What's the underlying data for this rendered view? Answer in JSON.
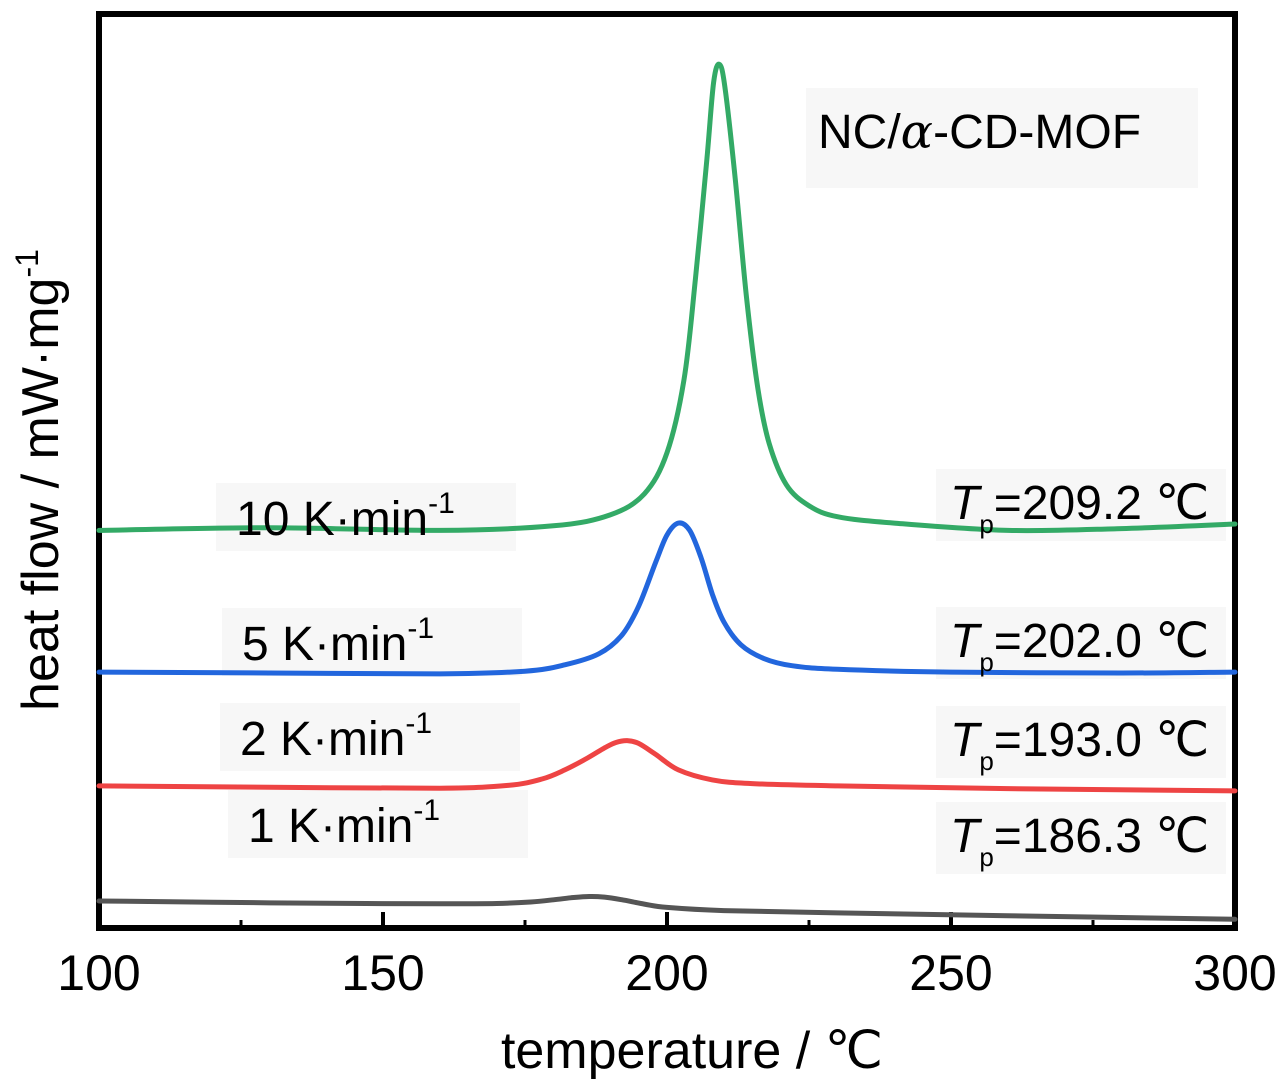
{
  "chart_data": {
    "type": "line",
    "title": "NC/α-CD-MOF",
    "title_parts": {
      "prefix": "NC/",
      "greek": "α",
      "suffix": "-CD-MOF"
    },
    "xlabel": "temperature / ℃",
    "ylabel": "heat flow / mW·mg",
    "ylabel_sup": "-1",
    "xlim": [
      100,
      300
    ],
    "xticks": [
      100,
      150,
      200,
      250,
      300
    ],
    "xticks_minor": [
      125,
      175,
      225,
      275
    ],
    "y_ticks_shown": false,
    "grid": false,
    "series": [
      {
        "rate_value": "1",
        "rate_unit": "K·min",
        "rate_sup": "-1",
        "tp_symbol": "T",
        "tp_sub": "p",
        "tp_text": "=186.3 ℃",
        "peak_temperature": 186.3,
        "color": "#555555",
        "x": [
          100,
          120,
          140,
          160,
          170,
          176,
          180,
          183,
          186.3,
          189,
          192,
          196,
          200,
          210,
          230,
          260,
          300
        ],
        "y": [
          0.295,
          0.282,
          0.27,
          0.265,
          0.268,
          0.285,
          0.308,
          0.33,
          0.345,
          0.338,
          0.31,
          0.262,
          0.225,
          0.19,
          0.165,
          0.135,
          0.095
        ]
      },
      {
        "rate_value": "2",
        "rate_unit": "K·min",
        "rate_sup": "-1",
        "tp_symbol": "T",
        "tp_sub": "p",
        "tp_text": "=193.0 ℃",
        "peak_temperature": 193.0,
        "color": "#ee4444",
        "x": [
          100,
          130,
          160,
          172,
          178,
          182,
          186,
          189,
          191,
          193.0,
          195,
          198,
          202,
          208,
          215,
          230,
          260,
          300
        ],
        "y": [
          1.555,
          1.54,
          1.53,
          1.56,
          1.63,
          1.73,
          1.86,
          1.97,
          2.03,
          2.05,
          2.02,
          1.9,
          1.73,
          1.62,
          1.58,
          1.555,
          1.525,
          1.5
        ]
      },
      {
        "rate_value": "5",
        "rate_unit": "K·min",
        "rate_sup": "-1",
        "tp_symbol": "T",
        "tp_sub": "p",
        "tp_text": "=202.0 ℃",
        "peak_temperature": 202.0,
        "color": "#2266dd",
        "x": [
          100,
          130,
          160,
          175,
          182,
          188,
          192,
          195,
          198,
          200,
          202.0,
          204,
          206,
          208,
          210,
          213,
          217,
          222,
          230,
          250,
          280,
          300
        ],
        "y": [
          2.8,
          2.79,
          2.78,
          2.81,
          2.88,
          3.0,
          3.2,
          3.52,
          4.0,
          4.3,
          4.43,
          4.35,
          4.05,
          3.65,
          3.35,
          3.1,
          2.95,
          2.87,
          2.83,
          2.8,
          2.79,
          2.8
        ]
      },
      {
        "rate_value": "10",
        "rate_unit": "K·min",
        "rate_sup": "-1",
        "tp_symbol": "T",
        "tp_sub": "p",
        "tp_text": "=209.2 ℃",
        "peak_temperature": 209.2,
        "color": "#33aa66",
        "x": [
          100,
          130,
          160,
          180,
          190,
          196,
          200,
          203,
          205,
          207,
          208.2,
          209.2,
          210.2,
          212,
          214,
          216,
          218,
          221,
          225,
          230,
          240,
          260,
          280,
          300
        ],
        "y": [
          4.35,
          4.38,
          4.35,
          4.4,
          4.52,
          4.75,
          5.2,
          6.0,
          7.1,
          8.4,
          9.25,
          9.45,
          9.2,
          8.2,
          6.9,
          5.9,
          5.3,
          4.85,
          4.62,
          4.5,
          4.43,
          4.35,
          4.37,
          4.42
        ]
      }
    ]
  }
}
